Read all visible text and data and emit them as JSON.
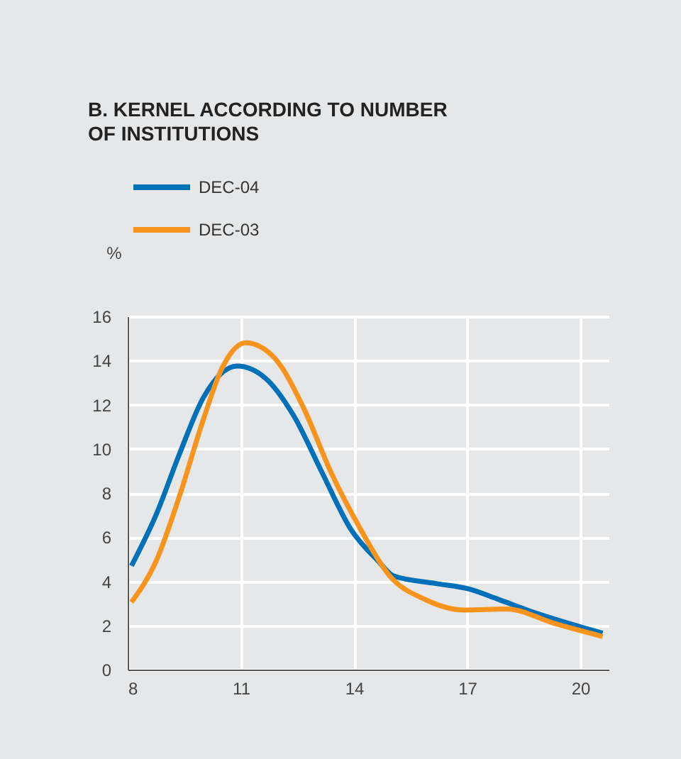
{
  "chart_data": {
    "type": "line",
    "title": "B. KERNEL ACCORDING TO NUMBER OF INSTITUTIONS",
    "ylabel": "%",
    "xlim": [
      8,
      20.75
    ],
    "xticks": [
      8,
      11,
      14,
      17,
      20
    ],
    "ylim": [
      0,
      16
    ],
    "yticks": [
      0,
      2,
      4,
      6,
      8,
      10,
      12,
      14,
      16
    ],
    "grid": true,
    "legend": "top left",
    "marker": "none",
    "line_style": "solid",
    "series": [
      {
        "name": "DEC-04",
        "color": "#0070b8",
        "x": [
          8.1,
          8.75,
          9.38,
          10.0,
          10.9,
          11.65,
          12.4,
          13.16,
          13.9,
          14.65,
          15.04,
          16.17,
          17.05,
          17.8,
          18.67,
          20.59
        ],
        "values": [
          4.7,
          7.0,
          9.8,
          12.3,
          13.75,
          13.2,
          11.5,
          8.9,
          6.4,
          4.9,
          4.25,
          3.9,
          3.65,
          3.2,
          2.65,
          1.65
        ]
      },
      {
        "name": "DEC-03",
        "color": "#f7941d",
        "x": [
          8.1,
          8.75,
          9.38,
          10.0,
          10.5,
          11.13,
          11.9,
          12.65,
          13.4,
          14.16,
          14.92,
          15.92,
          16.92,
          18.05,
          19.3,
          20.59
        ],
        "values": [
          3.05,
          4.9,
          7.9,
          11.3,
          13.65,
          14.8,
          14.1,
          11.9,
          8.9,
          6.4,
          4.3,
          3.15,
          2.7,
          2.75,
          2.1,
          1.5
        ]
      }
    ]
  }
}
